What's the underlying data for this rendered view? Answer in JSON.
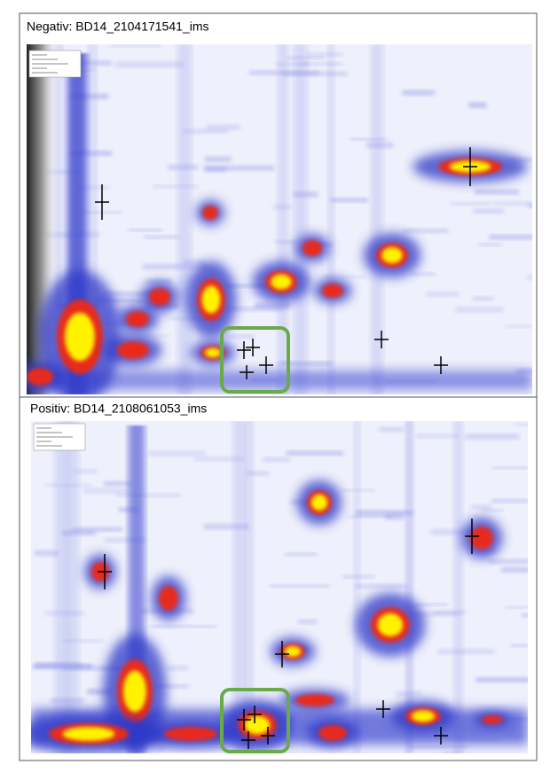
{
  "panels": [
    {
      "title": "Negativ: BD14_2104171541_ims"
    },
    {
      "title": "Positiv: BD14_2108061053_ims"
    }
  ]
}
